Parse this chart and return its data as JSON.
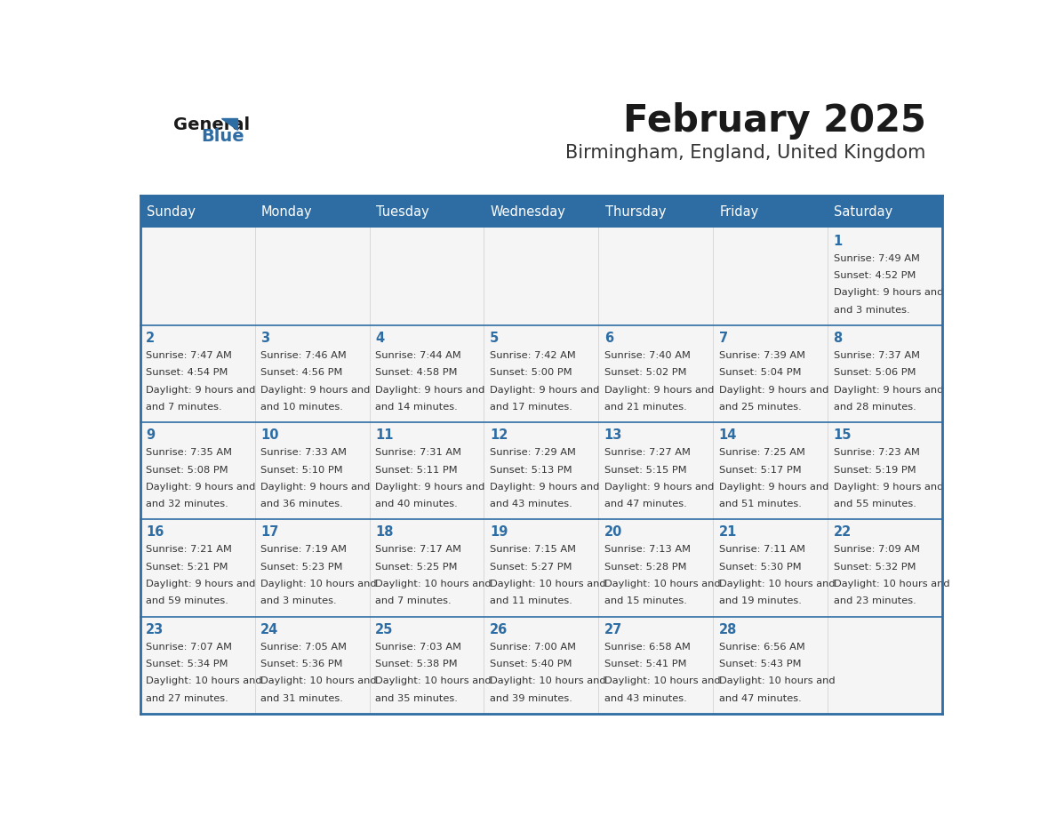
{
  "title": "February 2025",
  "subtitle": "Birmingham, England, United Kingdom",
  "days_of_week": [
    "Sunday",
    "Monday",
    "Tuesday",
    "Wednesday",
    "Thursday",
    "Friday",
    "Saturday"
  ],
  "header_bg": "#2E6DA4",
  "header_text": "#FFFFFF",
  "cell_bg": "#F5F5F5",
  "border_color": "#2E6DA4",
  "row_line_color": "#2E6DA4",
  "title_color": "#1a1a1a",
  "subtitle_color": "#333333",
  "day_num_color": "#2E6DA4",
  "info_color": "#333333",
  "logo_general_color": "#1a1a1a",
  "logo_blue_color": "#2E6DA4",
  "calendar": [
    [
      null,
      null,
      null,
      null,
      null,
      null,
      {
        "day": 1,
        "sunrise": "7:49 AM",
        "sunset": "4:52 PM",
        "daylight": "9 hours and 3 minutes."
      }
    ],
    [
      {
        "day": 2,
        "sunrise": "7:47 AM",
        "sunset": "4:54 PM",
        "daylight": "9 hours and 7 minutes."
      },
      {
        "day": 3,
        "sunrise": "7:46 AM",
        "sunset": "4:56 PM",
        "daylight": "9 hours and 10 minutes."
      },
      {
        "day": 4,
        "sunrise": "7:44 AM",
        "sunset": "4:58 PM",
        "daylight": "9 hours and 14 minutes."
      },
      {
        "day": 5,
        "sunrise": "7:42 AM",
        "sunset": "5:00 PM",
        "daylight": "9 hours and 17 minutes."
      },
      {
        "day": 6,
        "sunrise": "7:40 AM",
        "sunset": "5:02 PM",
        "daylight": "9 hours and 21 minutes."
      },
      {
        "day": 7,
        "sunrise": "7:39 AM",
        "sunset": "5:04 PM",
        "daylight": "9 hours and 25 minutes."
      },
      {
        "day": 8,
        "sunrise": "7:37 AM",
        "sunset": "5:06 PM",
        "daylight": "9 hours and 28 minutes."
      }
    ],
    [
      {
        "day": 9,
        "sunrise": "7:35 AM",
        "sunset": "5:08 PM",
        "daylight": "9 hours and 32 minutes."
      },
      {
        "day": 10,
        "sunrise": "7:33 AM",
        "sunset": "5:10 PM",
        "daylight": "9 hours and 36 minutes."
      },
      {
        "day": 11,
        "sunrise": "7:31 AM",
        "sunset": "5:11 PM",
        "daylight": "9 hours and 40 minutes."
      },
      {
        "day": 12,
        "sunrise": "7:29 AM",
        "sunset": "5:13 PM",
        "daylight": "9 hours and 43 minutes."
      },
      {
        "day": 13,
        "sunrise": "7:27 AM",
        "sunset": "5:15 PM",
        "daylight": "9 hours and 47 minutes."
      },
      {
        "day": 14,
        "sunrise": "7:25 AM",
        "sunset": "5:17 PM",
        "daylight": "9 hours and 51 minutes."
      },
      {
        "day": 15,
        "sunrise": "7:23 AM",
        "sunset": "5:19 PM",
        "daylight": "9 hours and 55 minutes."
      }
    ],
    [
      {
        "day": 16,
        "sunrise": "7:21 AM",
        "sunset": "5:21 PM",
        "daylight": "9 hours and 59 minutes."
      },
      {
        "day": 17,
        "sunrise": "7:19 AM",
        "sunset": "5:23 PM",
        "daylight": "10 hours and 3 minutes."
      },
      {
        "day": 18,
        "sunrise": "7:17 AM",
        "sunset": "5:25 PM",
        "daylight": "10 hours and 7 minutes."
      },
      {
        "day": 19,
        "sunrise": "7:15 AM",
        "sunset": "5:27 PM",
        "daylight": "10 hours and 11 minutes."
      },
      {
        "day": 20,
        "sunrise": "7:13 AM",
        "sunset": "5:28 PM",
        "daylight": "10 hours and 15 minutes."
      },
      {
        "day": 21,
        "sunrise": "7:11 AM",
        "sunset": "5:30 PM",
        "daylight": "10 hours and 19 minutes."
      },
      {
        "day": 22,
        "sunrise": "7:09 AM",
        "sunset": "5:32 PM",
        "daylight": "10 hours and 23 minutes."
      }
    ],
    [
      {
        "day": 23,
        "sunrise": "7:07 AM",
        "sunset": "5:34 PM",
        "daylight": "10 hours and 27 minutes."
      },
      {
        "day": 24,
        "sunrise": "7:05 AM",
        "sunset": "5:36 PM",
        "daylight": "10 hours and 31 minutes."
      },
      {
        "day": 25,
        "sunrise": "7:03 AM",
        "sunset": "5:38 PM",
        "daylight": "10 hours and 35 minutes."
      },
      {
        "day": 26,
        "sunrise": "7:00 AM",
        "sunset": "5:40 PM",
        "daylight": "10 hours and 39 minutes."
      },
      {
        "day": 27,
        "sunrise": "6:58 AM",
        "sunset": "5:41 PM",
        "daylight": "10 hours and 43 minutes."
      },
      {
        "day": 28,
        "sunrise": "6:56 AM",
        "sunset": "5:43 PM",
        "daylight": "10 hours and 47 minutes."
      },
      null
    ]
  ]
}
